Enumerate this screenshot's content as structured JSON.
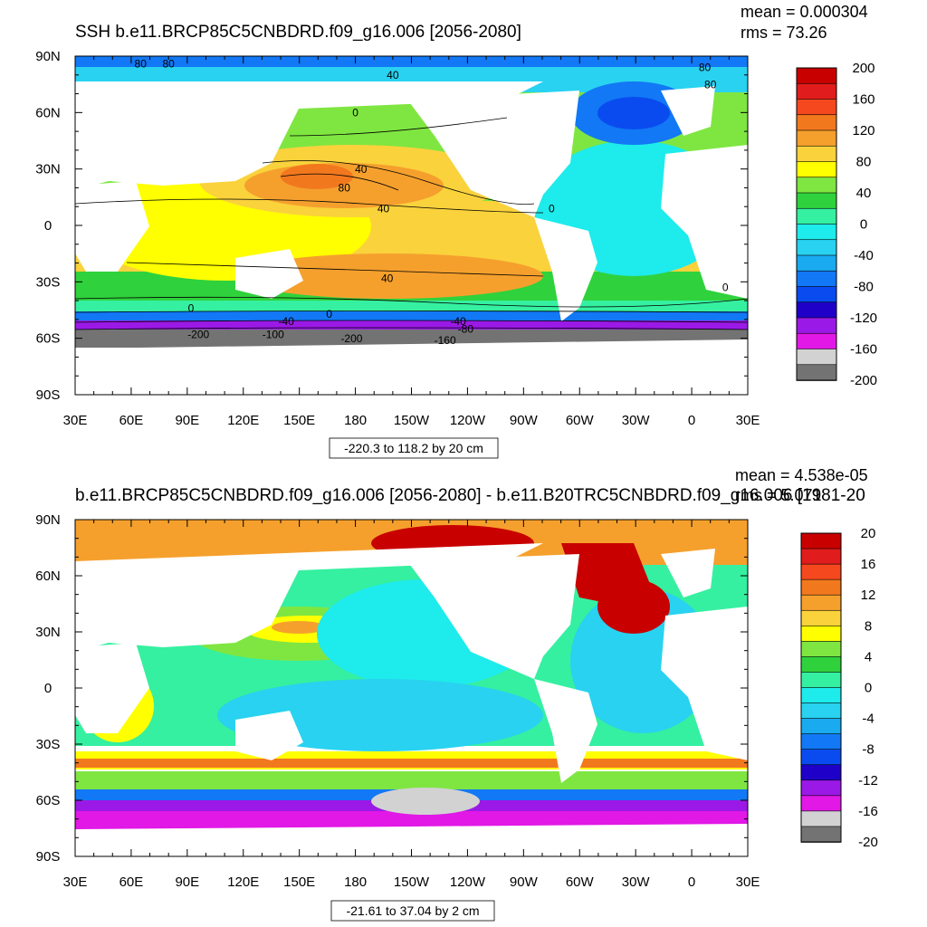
{
  "chart_data": [
    {
      "type": "heatmap",
      "title": "SSH b.e11.BRCP85C5CNBDRD.f09_g16.006 [2056-2080]",
      "stats": [
        "mean = 0.000304",
        "rms = 73.26"
      ],
      "range_label": "-220.3 to 118.2 by 20 cm",
      "x_ticks": [
        "30E",
        "60E",
        "90E",
        "120E",
        "150E",
        "180",
        "150W",
        "120W",
        "90W",
        "60W",
        "30W",
        "0",
        "30E"
      ],
      "y_ticks": [
        "90N",
        "60N",
        "30N",
        "0",
        "30S",
        "60S",
        "90S"
      ],
      "xlim": [
        30,
        390
      ],
      "ylim": [
        -90,
        90
      ],
      "colorbar": {
        "labels": [
          "200",
          "160",
          "120",
          "80",
          "40",
          "0",
          "-40",
          "-80",
          "-120",
          "-160",
          "-200"
        ],
        "colors": [
          "#c80000",
          "#e11c1c",
          "#f5481e",
          "#f2781e",
          "#f5a02d",
          "#fad23c",
          "#ffff00",
          "#7fe641",
          "#2fd23c",
          "#35f0a0",
          "#1eebeb",
          "#28d2f0",
          "#19aaf0",
          "#1278f5",
          "#0a4bf0",
          "#1e00c8",
          "#9b19e6",
          "#e118e6",
          "#d2d2d2",
          "#737373"
        ],
        "levels": [
          200,
          -200
        ]
      },
      "contour_labels": [
        {
          "text": "80",
          "lon": 65,
          "lat": 84
        },
        {
          "text": "80",
          "lon": 80,
          "lat": 84
        },
        {
          "text": "40",
          "lon": 200,
          "lat": 78
        },
        {
          "text": "80",
          "lon": 367,
          "lat": 82
        },
        {
          "text": "80",
          "lon": 370,
          "lat": 73
        },
        {
          "text": "0",
          "lon": 180,
          "lat": 58
        },
        {
          "text": "40",
          "lon": 183,
          "lat": 28
        },
        {
          "text": "80",
          "lon": 174,
          "lat": 18
        },
        {
          "text": "40",
          "lon": 195,
          "lat": 7
        },
        {
          "text": "0",
          "lon": 285,
          "lat": 7
        },
        {
          "text": "40",
          "lon": 197,
          "lat": -30
        },
        {
          "text": "0",
          "lon": 92,
          "lat": -46
        },
        {
          "text": "0",
          "lon": 166,
          "lat": -49
        },
        {
          "text": "0",
          "lon": 378,
          "lat": -35
        },
        {
          "text": "-40",
          "lon": 143,
          "lat": -53
        },
        {
          "text": "-40",
          "lon": 235,
          "lat": -53
        },
        {
          "text": "-80",
          "lon": 239,
          "lat": -57
        },
        {
          "text": "-100",
          "lon": 136,
          "lat": -60
        },
        {
          "text": "-160",
          "lon": 228,
          "lat": -63
        },
        {
          "text": "-200",
          "lon": 96,
          "lat": -60
        },
        {
          "text": "-200",
          "lon": 178,
          "lat": -62
        }
      ]
    },
    {
      "type": "heatmap",
      "title": "b.e11.BRCP85C5CNBDRD.f09_g16.006 [2056-2080] - b.e11.B20TRC5CNBDRD.f09_g16.006 [1981-20",
      "stats": [
        "mean = 4.538e-05",
        "rms = 5.071"
      ],
      "range_label": "-21.61 to 37.04 by 2 cm",
      "x_ticks": [
        "30E",
        "60E",
        "90E",
        "120E",
        "150E",
        "180",
        "150W",
        "120W",
        "90W",
        "60W",
        "30W",
        "0",
        "30E"
      ],
      "y_ticks": [
        "90N",
        "60N",
        "30N",
        "0",
        "30S",
        "60S",
        "90S"
      ],
      "xlim": [
        30,
        390
      ],
      "ylim": [
        -90,
        90
      ],
      "colorbar": {
        "labels": [
          "20",
          "16",
          "12",
          "8",
          "4",
          "0",
          "-4",
          "-8",
          "-12",
          "-16",
          "-20"
        ],
        "colors": [
          "#c80000",
          "#e11c1c",
          "#f5481e",
          "#f2781e",
          "#f5a02d",
          "#fad23c",
          "#ffff00",
          "#7fe641",
          "#2fd23c",
          "#35f0a0",
          "#1eebeb",
          "#28d2f0",
          "#19aaf0",
          "#1278f5",
          "#0a4bf0",
          "#1e00c8",
          "#9b19e6",
          "#e118e6",
          "#d2d2d2",
          "#737373"
        ],
        "levels": [
          20,
          -20
        ]
      }
    }
  ]
}
